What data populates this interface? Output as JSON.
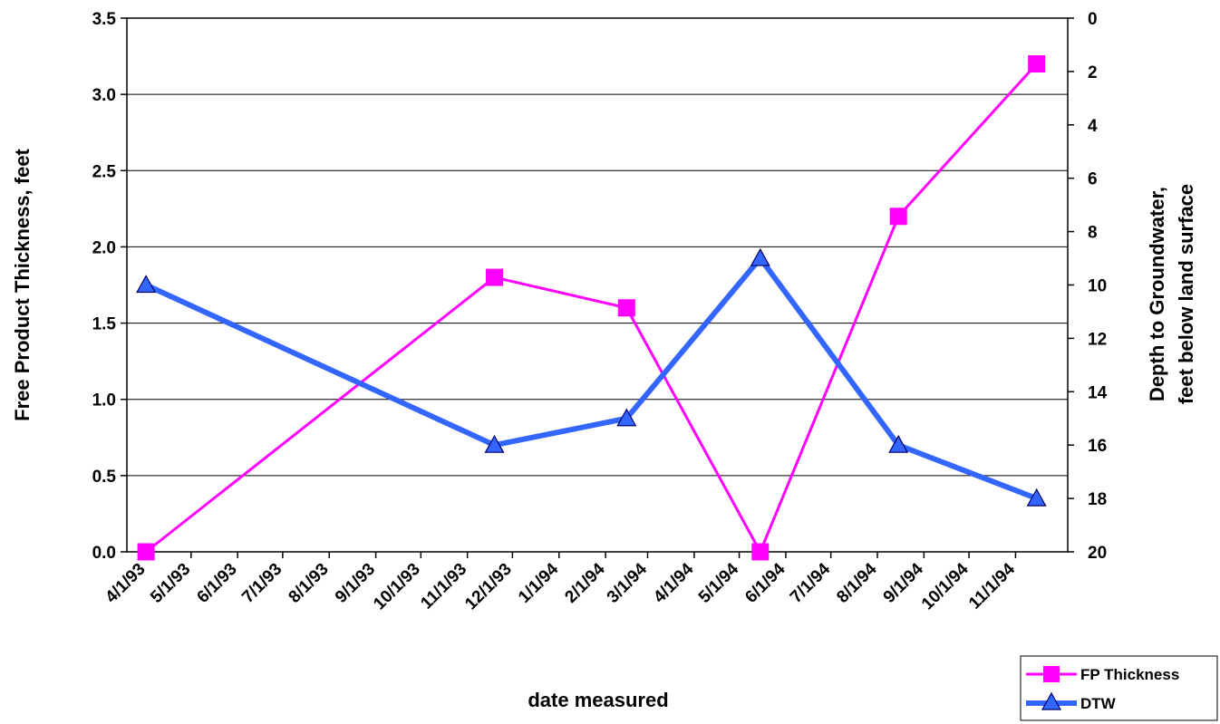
{
  "chart_data": {
    "type": "line",
    "xlabel": "date measured",
    "ylabel": "Free Product Thickness, feet",
    "y2label_line1": "Depth to Groundwater,",
    "y2label_line2": "feet below land surface",
    "x_tick_labels": [
      "4/1/93",
      "5/1/93",
      "6/1/93",
      "7/1/93",
      "8/1/93",
      "9/1/93",
      "10/1/93",
      "11/1/93",
      "12/1/93",
      "1/1/94",
      "2/1/94",
      "3/1/94",
      "4/1/94",
      "5/1/94",
      "6/1/94",
      "7/1/94",
      "8/1/94",
      "9/1/94",
      "10/1/94",
      "11/1/94"
    ],
    "ylim": [
      0,
      3.5
    ],
    "y_tick_labels": [
      "0.0",
      "0.5",
      "1.0",
      "1.5",
      "2.0",
      "2.5",
      "3.0",
      "3.5"
    ],
    "y2lim": [
      0,
      20
    ],
    "y2_inverted": true,
    "y2_tick_labels": [
      "0",
      "2",
      "4",
      "6",
      "8",
      "10",
      "12",
      "14",
      "16",
      "18",
      "20"
    ],
    "grid": "horizontal",
    "legend_position": "bottom-right",
    "series": [
      {
        "name": "FP Thickness",
        "axis": "left",
        "color": "#ff00ff",
        "marker": "square",
        "points": [
          {
            "x": "4/1/93",
            "y": 0.0
          },
          {
            "x": "11/19/93",
            "y": 1.8
          },
          {
            "x": "2/15/94",
            "y": 1.6
          },
          {
            "x": "5/15/94",
            "y": 0.0
          },
          {
            "x": "8/15/94",
            "y": 2.2
          },
          {
            "x": "11/15/94",
            "y": 3.2
          }
        ]
      },
      {
        "name": "DTW",
        "axis": "right",
        "color": "#3366ff",
        "marker": "triangle",
        "points": [
          {
            "x": "4/1/93",
            "y": 10.0
          },
          {
            "x": "11/19/93",
            "y": 16.0
          },
          {
            "x": "2/15/94",
            "y": 15.0
          },
          {
            "x": "5/15/94",
            "y": 9.0
          },
          {
            "x": "8/15/94",
            "y": 16.0
          },
          {
            "x": "11/15/94",
            "y": 18.0
          }
        ]
      }
    ]
  }
}
